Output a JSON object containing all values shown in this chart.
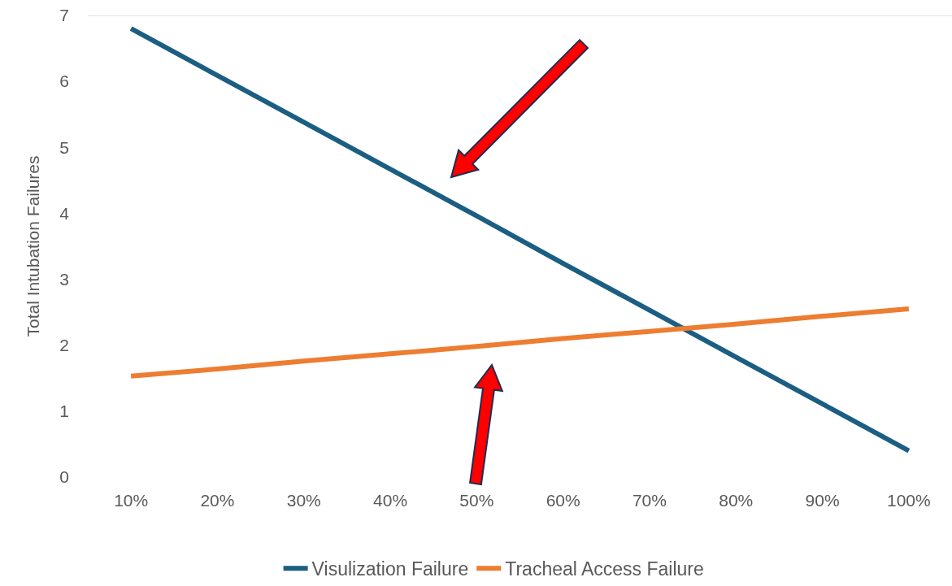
{
  "chart_data": {
    "type": "line",
    "ylabel": "Total Intubation Failures",
    "categories": [
      "10%",
      "20%",
      "30%",
      "40%",
      "50%",
      "60%",
      "70%",
      "80%",
      "90%",
      "100%"
    ],
    "series": [
      {
        "name": "Visulization Failure",
        "color": "#1b5e82",
        "values": [
          6.8,
          6.09,
          5.38,
          4.67,
          3.96,
          3.24,
          2.53,
          1.82,
          1.11,
          0.4
        ]
      },
      {
        "name": "Tracheal Access Failure",
        "color": "#ed7d31",
        "values": [
          1.53,
          1.64,
          1.76,
          1.87,
          1.98,
          2.1,
          2.21,
          2.32,
          2.44,
          2.55
        ]
      }
    ],
    "ylim": [
      0,
      7
    ],
    "yticks": [
      0,
      1,
      2,
      3,
      4,
      5,
      6,
      7
    ],
    "grid": false,
    "ref_lines": [
      {
        "axis": "y",
        "value": 7,
        "color": "#d9d9d9"
      }
    ],
    "legend": "bottom",
    "marker": "none",
    "line_style": "solid"
  }
}
